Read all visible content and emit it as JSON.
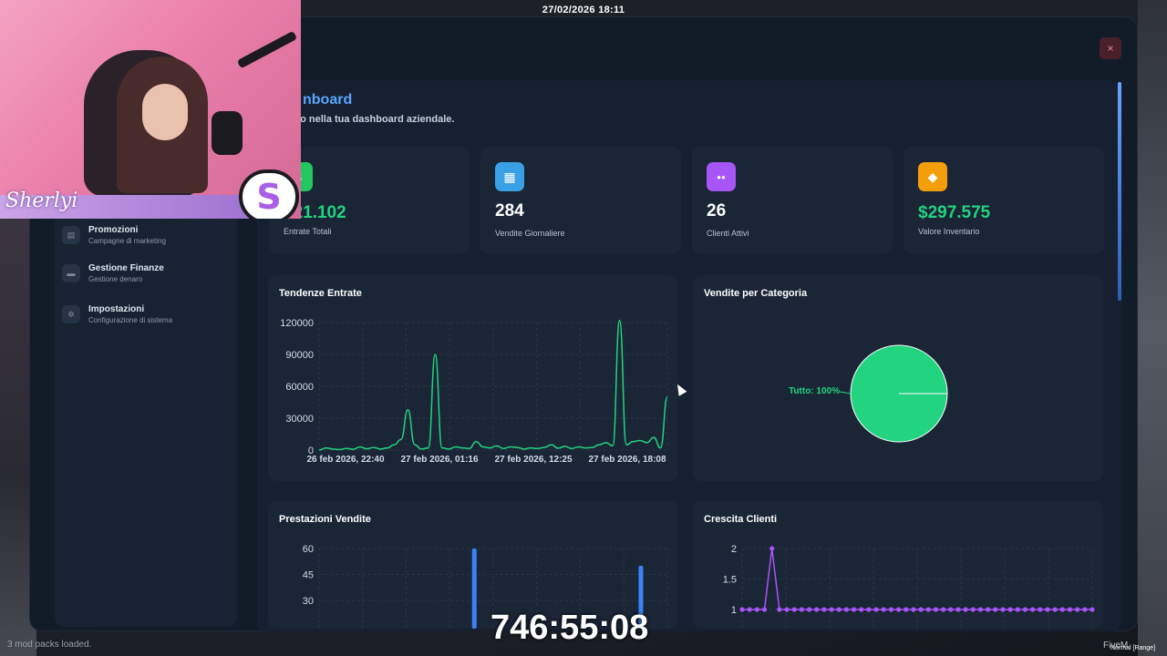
{
  "clock": "27/02/2026 18:11",
  "dashboard": {
    "title": "nboard",
    "subtitle": "nuto nella tua dashboard aziendale.",
    "close_symbol": "×"
  },
  "sidebar": {
    "items": [
      {
        "title": "Promozioni",
        "subtitle": "Campagne di marketing",
        "icon": "tag-icon"
      },
      {
        "title": "Gestione Finanze",
        "subtitle": "Gestione denaro",
        "icon": "wallet-icon"
      },
      {
        "title": "Impostazioni",
        "subtitle": "Configurazione di sistema",
        "icon": "gear-icon"
      }
    ]
  },
  "stats": [
    {
      "value": "$21.102",
      "label": "Entrate Totali",
      "color": "#22c55e",
      "icon": "dollar-icon",
      "icon_glyph": "$",
      "green": true
    },
    {
      "value": "284",
      "label": "Vendite Giornaliere",
      "color": "#3aa0e6",
      "icon": "store-icon",
      "icon_glyph": "▦",
      "green": false
    },
    {
      "value": "26",
      "label": "Clienti Attivi",
      "color": "#a855f7",
      "icon": "users-icon",
      "icon_glyph": "●●",
      "green": false
    },
    {
      "value": "$297.575",
      "label": "Valore Inventario",
      "color": "#f59e0b",
      "icon": "box-icon",
      "icon_glyph": "◆",
      "green": true
    }
  ],
  "panels": {
    "revenue_trend": "Tendenze Entrate",
    "sales_by_category": "Vendite per Categoria",
    "sales_performance": "Prestazioni Vendite",
    "client_growth": "Crescita Clienti"
  },
  "chart_data": [
    {
      "type": "line",
      "title": "Tendenze Entrate",
      "color": "#22d37f",
      "ylim": [
        0,
        120000
      ],
      "yticks": [
        "120000",
        "90000",
        "60000",
        "30000",
        "0"
      ],
      "xticks": [
        "26 feb 2026, 22:40",
        "27 feb 2026, 01:16",
        "27 feb 2026, 12:25",
        "27 feb 2026, 18:08"
      ],
      "values": [
        0,
        2000,
        1000,
        500,
        1500,
        800,
        3000,
        1200,
        2500,
        1000,
        2000,
        5000,
        10000,
        38000,
        5000,
        1000,
        2000,
        90000,
        2000,
        1000,
        3000,
        2000,
        1500,
        8000,
        3000,
        2000,
        4000,
        1500,
        3000,
        2500,
        1000,
        2000,
        1500,
        2500,
        5000,
        1800,
        3500,
        1500,
        3000,
        2000,
        2500,
        5000,
        7000,
        4000,
        122000,
        5000,
        8000,
        9000,
        7000,
        12000,
        2000,
        50000
      ]
    },
    {
      "type": "pie",
      "title": "Vendite per Categoria",
      "categories": [
        "Tutto"
      ],
      "values": [
        100
      ],
      "data_label": "Tutto: 100%",
      "color": "#22d37f"
    },
    {
      "type": "bar",
      "title": "Prestazioni Vendite",
      "color": "#3b82f6",
      "ylim": [
        0,
        60
      ],
      "yticks": [
        "60",
        "45",
        "30"
      ],
      "slots": 46,
      "values": [
        0,
        0,
        0,
        0,
        0,
        0,
        0,
        0,
        0,
        0,
        0,
        0,
        0,
        0,
        0,
        0,
        0,
        0,
        0,
        0,
        60,
        0,
        0,
        0,
        0,
        0,
        0,
        0,
        0,
        0,
        0,
        0,
        0,
        0,
        0,
        0,
        0,
        0,
        0,
        0,
        0,
        0,
        50,
        0,
        0,
        0
      ]
    },
    {
      "type": "line",
      "title": "Crescita Clienti",
      "color": "#a855f7",
      "ylim": [
        1,
        2
      ],
      "yticks": [
        "2",
        "1.5",
        "1"
      ],
      "values": [
        1,
        1,
        1,
        1,
        2,
        1,
        1,
        1,
        1,
        1,
        1,
        1,
        1,
        1,
        1,
        1,
        1,
        1,
        1,
        1,
        1,
        1,
        1,
        1,
        1,
        1,
        1,
        1,
        1,
        1,
        1,
        1,
        1,
        1,
        1,
        1,
        1,
        1,
        1,
        1,
        1,
        1,
        1,
        1,
        1,
        1,
        1,
        1
      ]
    }
  ],
  "overlay": {
    "streamer_name": "Sherlyi",
    "logo_letter": "S",
    "timer": "746:55:08",
    "corner_left": "3 mod packs loaded.",
    "corner_right": "FiveM",
    "corner_right2": "Normal [Range]"
  }
}
